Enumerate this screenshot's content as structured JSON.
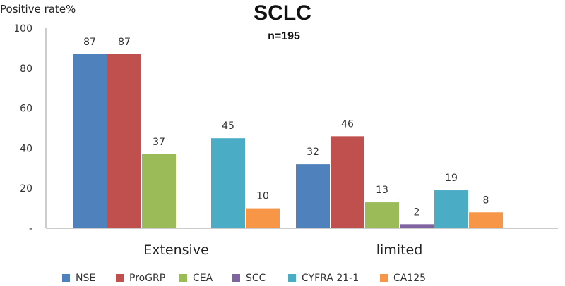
{
  "chart_data": {
    "type": "bar",
    "title": "SCLC",
    "subtitle": "n=195",
    "ylabel": "Positive rate%",
    "xlabel": "",
    "ylim": [
      0,
      100
    ],
    "yticks": [
      "-",
      "20",
      "40",
      "60",
      "80",
      "100"
    ],
    "categories": [
      "Extensive",
      "limited"
    ],
    "series": [
      {
        "name": "NSE",
        "color": "#4f81bd",
        "values": [
          87,
          32
        ]
      },
      {
        "name": "ProGRP",
        "color": "#c0504d",
        "values": [
          87,
          46
        ]
      },
      {
        "name": "CEA",
        "color": "#9bbb59",
        "values": [
          37,
          13
        ]
      },
      {
        "name": "SCC",
        "color": "#8064a2",
        "values": [
          0,
          2
        ]
      },
      {
        "name": "CYFRA 21-1",
        "color": "#4bacc6",
        "values": [
          45,
          19
        ]
      },
      {
        "name": "CA125",
        "color": "#f79646",
        "values": [
          10,
          8
        ]
      }
    ],
    "data_labels": [
      [
        "87",
        "32"
      ],
      [
        "87",
        "46"
      ],
      [
        "37",
        "13"
      ],
      [
        "",
        "2"
      ],
      [
        "45",
        "19"
      ],
      [
        "10",
        "8"
      ]
    ],
    "legend_position": "bottom",
    "grid": false
  }
}
